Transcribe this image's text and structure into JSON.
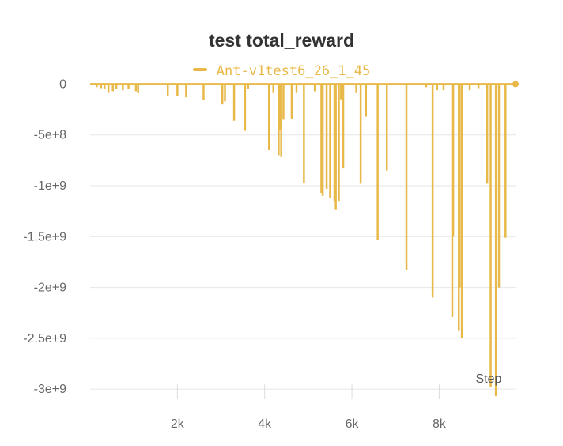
{
  "chart_data": {
    "type": "line",
    "title": "test total_reward",
    "xlabel": "Step",
    "ylabel": "",
    "grid": true,
    "legend_placement": "top-center",
    "xlim": [
      0,
      9750
    ],
    "ylim": [
      -3100000000,
      50000000
    ],
    "x_ticks": [
      {
        "value": 2000,
        "label": "2k"
      },
      {
        "value": 4000,
        "label": "4k"
      },
      {
        "value": 6000,
        "label": "6k"
      },
      {
        "value": 8000,
        "label": "8k"
      }
    ],
    "y_ticks": [
      {
        "value": 0,
        "label": "0"
      },
      {
        "value": -500000000,
        "label": "-5e+8"
      },
      {
        "value": -1000000000,
        "label": "-1e+9"
      },
      {
        "value": -1500000000,
        "label": "-1.5e+9"
      },
      {
        "value": -2000000000,
        "label": "-2e+9"
      },
      {
        "value": -2500000000,
        "label": "-2.5e+9"
      },
      {
        "value": -3000000000,
        "label": "-3e+9"
      }
    ],
    "series": [
      {
        "name": "Ant-v1test6_26_1_45",
        "color": "#e8b949",
        "spikes": [
          [
            150,
            -30000000
          ],
          [
            250,
            -40000000
          ],
          [
            330,
            -50000000
          ],
          [
            420,
            -80000000
          ],
          [
            520,
            -70000000
          ],
          [
            600,
            -50000000
          ],
          [
            750,
            -60000000
          ],
          [
            880,
            -50000000
          ],
          [
            1050,
            -70000000
          ],
          [
            1100,
            -90000000
          ],
          [
            1780,
            -120000000
          ],
          [
            2000,
            -120000000
          ],
          [
            2200,
            -130000000
          ],
          [
            2600,
            -160000000
          ],
          [
            3030,
            -200000000
          ],
          [
            3090,
            -170000000
          ],
          [
            3300,
            -360000000
          ],
          [
            3550,
            -460000000
          ],
          [
            3620,
            -50000000
          ],
          [
            4100,
            -650000000
          ],
          [
            4200,
            -80000000
          ],
          [
            4320,
            -700000000
          ],
          [
            4350,
            -450000000
          ],
          [
            4380,
            -710000000
          ],
          [
            4430,
            -350000000
          ],
          [
            4620,
            -340000000
          ],
          [
            4730,
            -80000000
          ],
          [
            4900,
            -970000000
          ],
          [
            5150,
            -70000000
          ],
          [
            5300,
            -1070000000
          ],
          [
            5330,
            -1100000000
          ],
          [
            5420,
            -1030000000
          ],
          [
            5500,
            -1120000000
          ],
          [
            5600,
            -1150000000
          ],
          [
            5630,
            -1230000000
          ],
          [
            5700,
            -1150000000
          ],
          [
            5750,
            -150000000
          ],
          [
            5800,
            -830000000
          ],
          [
            6100,
            -80000000
          ],
          [
            6200,
            -980000000
          ],
          [
            6320,
            -320000000
          ],
          [
            6590,
            -1530000000
          ],
          [
            6800,
            -850000000
          ],
          [
            7250,
            -1830000000
          ],
          [
            7700,
            -30000000
          ],
          [
            7850,
            -2100000000
          ],
          [
            7950,
            -60000000
          ],
          [
            8100,
            -60000000
          ],
          [
            8300,
            -2290000000
          ],
          [
            8320,
            -1500000000
          ],
          [
            8450,
            -2420000000
          ],
          [
            8470,
            -2000000000
          ],
          [
            8520,
            -2500000000
          ],
          [
            8700,
            -60000000
          ],
          [
            8900,
            -40000000
          ],
          [
            9100,
            -980000000
          ],
          [
            9180,
            -2980000000
          ],
          [
            9300,
            -3070000000
          ],
          [
            9370,
            -2000000000
          ],
          [
            9520,
            -1510000000
          ]
        ]
      }
    ]
  }
}
